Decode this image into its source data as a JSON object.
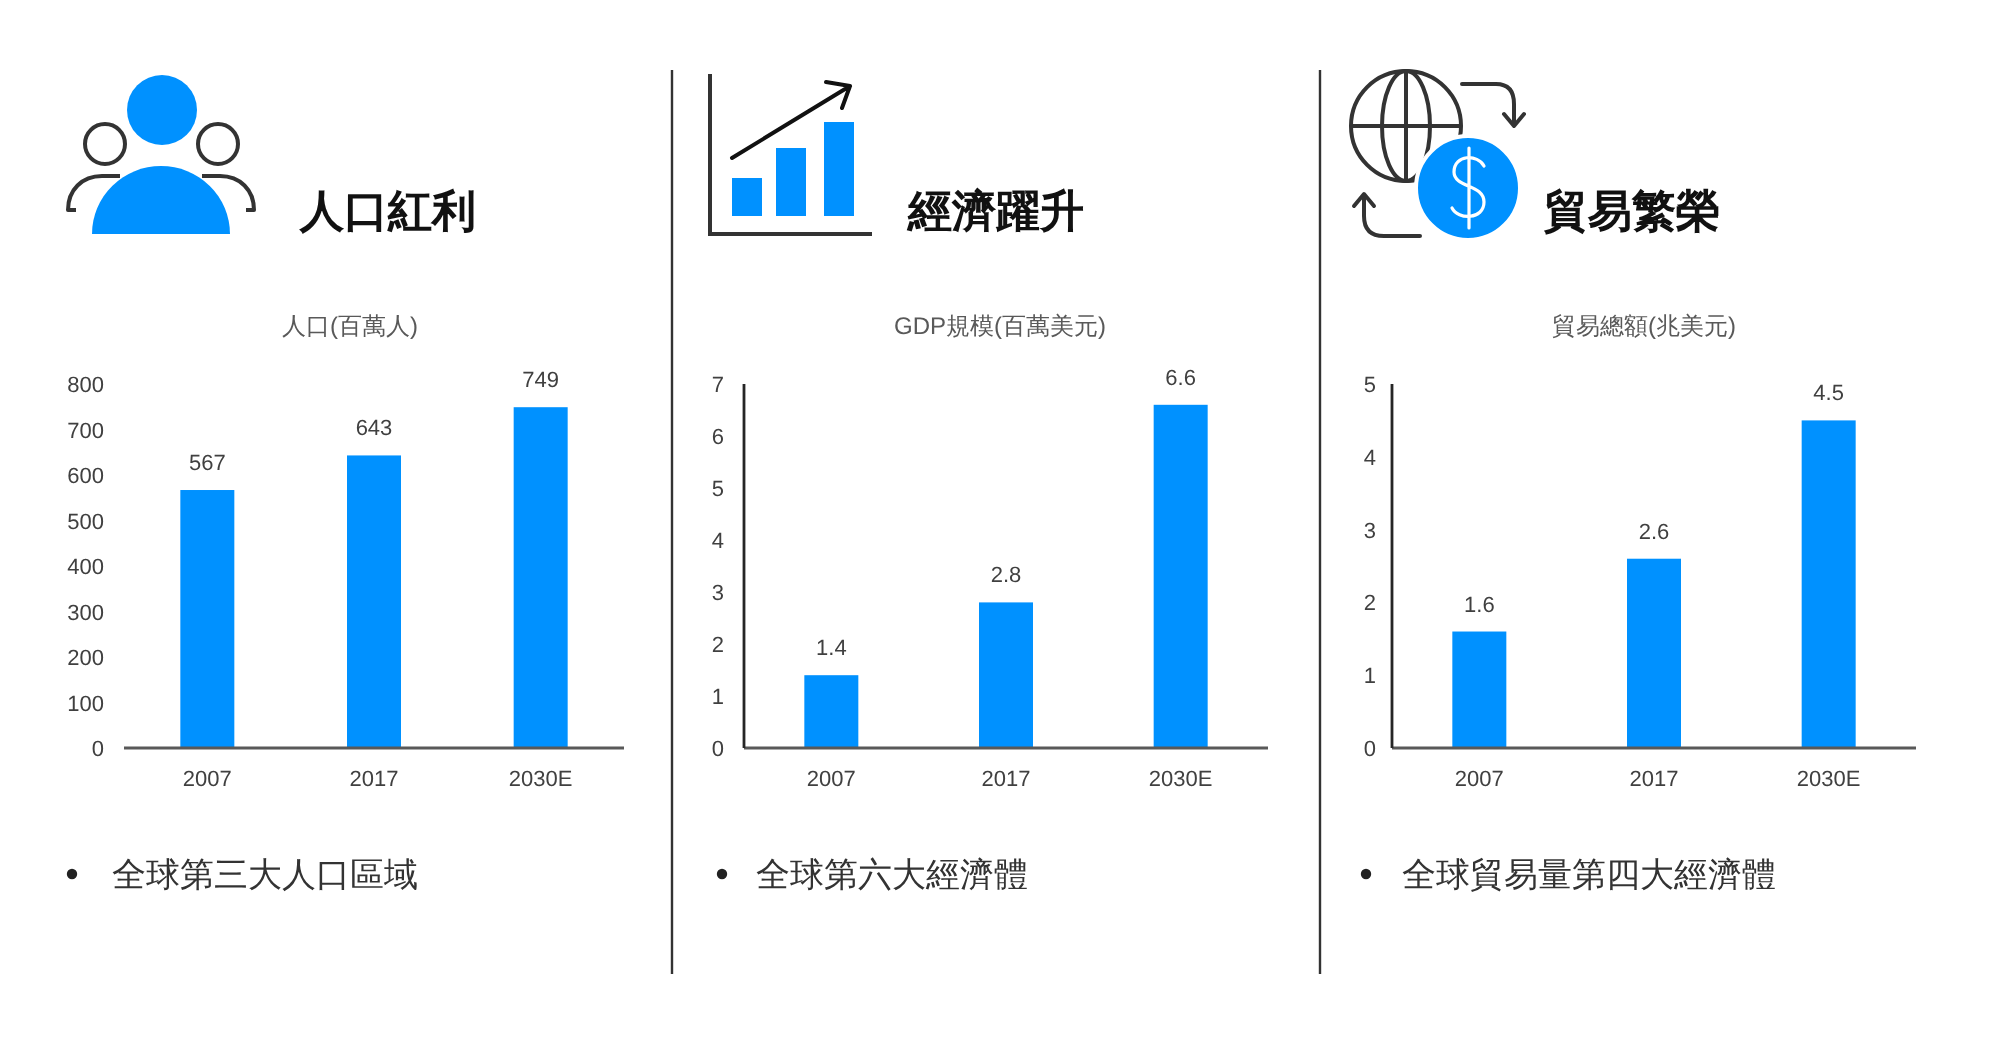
{
  "chart_data": [
    {
      "type": "bar",
      "title": "人口紅利",
      "subtitle": "人口(百萬人)",
      "categories": [
        "2007",
        "2017",
        "2030E"
      ],
      "values": [
        567,
        643,
        749
      ],
      "color": "#0091ff",
      "ylim": [
        0,
        800
      ],
      "yticks": [
        0,
        100,
        200,
        300,
        400,
        500,
        600,
        700,
        800
      ],
      "data_labels": true,
      "annotations": [
        "全球第三大人口區域"
      ]
    },
    {
      "type": "bar",
      "title": "經濟躍升",
      "subtitle": "GDP規模(百萬美元)",
      "categories": [
        "2007",
        "2017",
        "2030E"
      ],
      "values": [
        1.4,
        2.8,
        6.6
      ],
      "color": "#0091ff",
      "ylim": [
        0,
        7
      ],
      "yticks": [
        0,
        1,
        2,
        3,
        4,
        5,
        6,
        7
      ],
      "data_labels": true,
      "annotations": [
        "全球第六大經濟體"
      ]
    },
    {
      "type": "bar",
      "title": "貿易繁榮",
      "subtitle": "貿易總額(兆美元)",
      "categories": [
        "2007",
        "2017",
        "2030E"
      ],
      "values": [
        1.6,
        2.6,
        4.5
      ],
      "color": "#0091ff",
      "ylim": [
        0,
        5
      ],
      "yticks": [
        0,
        1,
        2,
        3,
        4,
        5
      ],
      "data_labels": true,
      "annotations": [
        "全球貿易量第四大經濟體"
      ]
    }
  ]
}
